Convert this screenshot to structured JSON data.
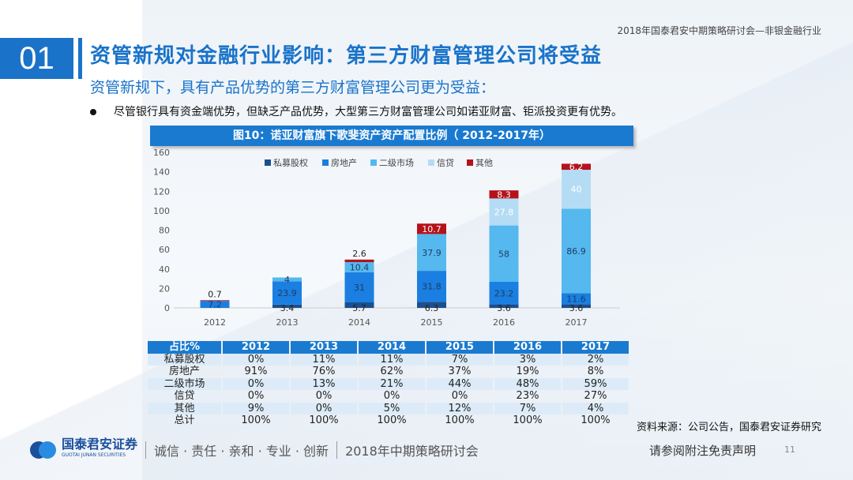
{
  "header": {
    "topline": "2018年国泰君安中期策略研讨会—非银金融行业",
    "section_number": "01",
    "title": "资管新规对金融行业影响：第三方财富管理公司将受益",
    "subtitle": "资管新规下，具有产品优势的第三方财富管理公司更为受益：",
    "bullet": "尽管银行具有资金端优势，但缺乏产品优势，大型第三方财富管理公司如诺亚财富、钜派投资更有优势。"
  },
  "chart_data": {
    "type": "bar",
    "stacked": true,
    "title": "图10：诺亚财富旗下歌斐资产资产配置比例（ 2012-2017年）",
    "categories": [
      "2012",
      "2013",
      "2014",
      "2015",
      "2016",
      "2017"
    ],
    "ylim": [
      0,
      160
    ],
    "yticks": [
      0,
      20,
      40,
      60,
      80,
      100,
      120,
      140,
      160
    ],
    "legend_position": "top",
    "series": [
      {
        "name": "私募股权",
        "color": "#1b4f8e",
        "values": [
          0,
          3.4,
          5.7,
          6.3,
          3.6,
          3.6
        ],
        "labels": [
          "",
          "3.4",
          "5.7",
          "6.3",
          "3.6",
          "3.6"
        ]
      },
      {
        "name": "房地产",
        "color": "#1a7fe0",
        "values": [
          7.2,
          23.9,
          31,
          31.8,
          23.2,
          11.6
        ],
        "labels": [
          "7.2",
          "23.9",
          "31",
          "31.8",
          "23.2",
          "11.6"
        ]
      },
      {
        "name": "二级市场",
        "color": "#55b8ee",
        "values": [
          0,
          4,
          10.4,
          37.9,
          58,
          86.9
        ],
        "labels": [
          "",
          "4",
          "10.4",
          "37.9",
          "58",
          "86.9"
        ]
      },
      {
        "name": "信贷",
        "color": "#b5dcf5",
        "values": [
          0,
          0,
          0,
          0,
          27.8,
          40
        ],
        "labels": [
          "",
          "",
          "",
          "",
          "27.8",
          "40"
        ]
      },
      {
        "name": "其他",
        "color": "#b5121b",
        "values": [
          0.7,
          0,
          2.6,
          10.7,
          8.3,
          6.2
        ],
        "labels": [
          "0.7",
          "",
          "2.6",
          "10.7",
          "8.3",
          "6.2"
        ]
      }
    ]
  },
  "table": {
    "headers": [
      "占比%",
      "2012",
      "2013",
      "2014",
      "2015",
      "2016",
      "2017"
    ],
    "rows": [
      [
        "私募股权",
        "0%",
        "11%",
        "11%",
        "7%",
        "3%",
        "2%"
      ],
      [
        "房地产",
        "91%",
        "76%",
        "62%",
        "37%",
        "19%",
        "8%"
      ],
      [
        "二级市场",
        "0%",
        "13%",
        "21%",
        "44%",
        "48%",
        "59%"
      ],
      [
        "信贷",
        "0%",
        "0%",
        "0%",
        "0%",
        "23%",
        "27%"
      ],
      [
        "其他",
        "9%",
        "0%",
        "5%",
        "12%",
        "7%",
        "4%"
      ],
      [
        "总计",
        "100%",
        "100%",
        "100%",
        "100%",
        "100%",
        "100%"
      ]
    ]
  },
  "source": "资料来源：公司公告，国泰君安证券研究",
  "footer": {
    "logo_cn": "国泰君安证券",
    "logo_en": "GUOTAI JUNAN SECURITIES",
    "motto": "诚信 · 责任 · 亲和 · 专业 · 创新",
    "event": "2018年中期策略研讨会",
    "disclaimer": "请参阅附注免责声明",
    "page": "11"
  }
}
